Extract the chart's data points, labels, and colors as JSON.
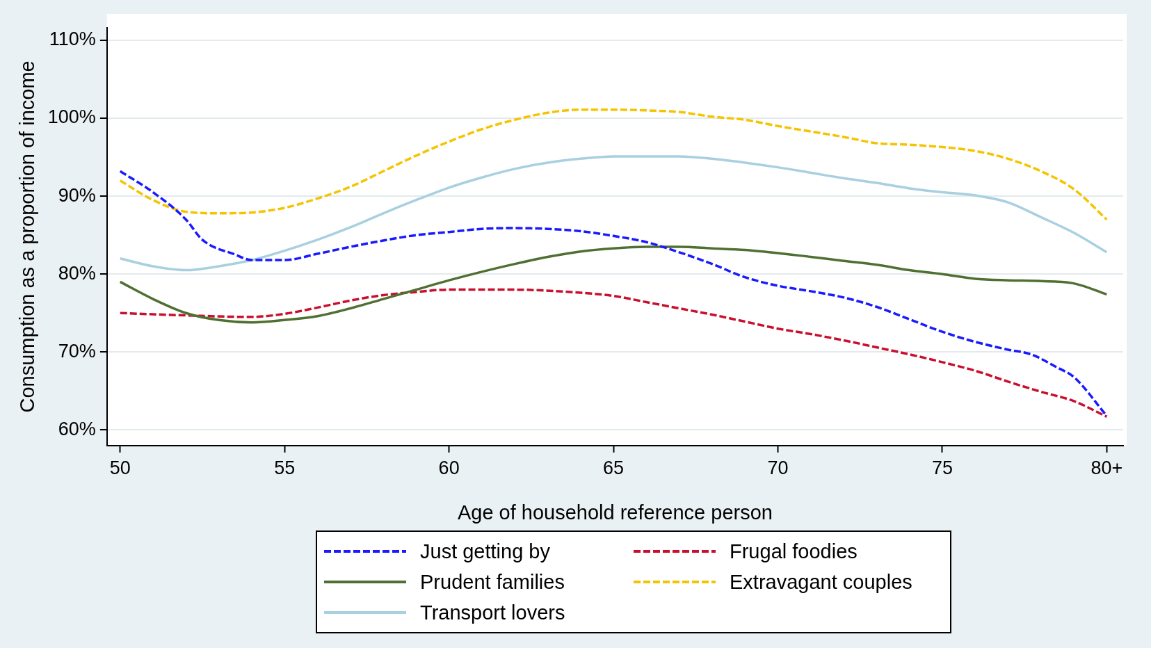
{
  "chart_data": {
    "type": "line",
    "xlabel": "Age of household reference person",
    "ylabel": "Consumption as a proportion of income",
    "xlim": [
      49.6,
      80.5
    ],
    "xticks": [
      50,
      55,
      60,
      65,
      70,
      75,
      {
        "value": 80,
        "label": "80+"
      }
    ],
    "ylim": [
      58,
      111.6
    ],
    "yticks": [
      {
        "value": 60,
        "label": "60%"
      },
      {
        "value": 70,
        "label": "70%"
      },
      {
        "value": 80,
        "label": "80%"
      },
      {
        "value": 90,
        "label": "90%"
      },
      {
        "value": 100,
        "label": "100%"
      },
      {
        "value": 110,
        "label": "110%"
      }
    ],
    "grid": "y",
    "legend": "bottom",
    "marker": "none",
    "series": [
      {
        "name": "Just getting by",
        "color": "#1a1aff",
        "line_style": "dashed",
        "x": [
          50,
          51,
          52,
          52.5,
          53.5,
          54,
          55,
          56,
          57,
          58,
          59,
          60,
          61,
          62,
          63,
          64,
          65,
          66,
          67,
          68,
          69,
          70,
          71,
          72,
          73,
          74,
          75,
          76,
          77,
          77.7,
          78.5,
          79,
          80
        ],
        "values": [
          93.2,
          90.5,
          87,
          84.4,
          82.5,
          81.8,
          81.8,
          82.6,
          83.5,
          84.3,
          85,
          85.4,
          85.8,
          85.9,
          85.8,
          85.5,
          84.9,
          84.1,
          82.8,
          81.3,
          79.6,
          78.5,
          77.8,
          77,
          75.8,
          74.2,
          72.6,
          71.3,
          70.3,
          69.7,
          68,
          66.8,
          61.8
        ]
      },
      {
        "name": "Prudent families",
        "color": "#4f7032",
        "line_style": "solid",
        "x": [
          50,
          51,
          52,
          53,
          54,
          55,
          56,
          57,
          58,
          59,
          60,
          61,
          62,
          63,
          64,
          65,
          66,
          67,
          68,
          69,
          70,
          71,
          72,
          73,
          74,
          75,
          76,
          77,
          78,
          79,
          80
        ],
        "values": [
          79,
          76.8,
          75,
          74.1,
          73.8,
          74.1,
          74.6,
          75.6,
          76.8,
          78,
          79.2,
          80.3,
          81.3,
          82.2,
          82.9,
          83.3,
          83.5,
          83.5,
          83.3,
          83.1,
          82.7,
          82.2,
          81.7,
          81.2,
          80.5,
          80,
          79.4,
          79.2,
          79.1,
          78.8,
          77.4
        ]
      },
      {
        "name": "Transport lovers",
        "color": "#a8d0e0",
        "line_style": "solid",
        "x": [
          50,
          51,
          52,
          53,
          54,
          55,
          56,
          57,
          58,
          59,
          60,
          61,
          62,
          63,
          64,
          65,
          66,
          67,
          68,
          69,
          70,
          71,
          72,
          73,
          74,
          75,
          76,
          77,
          78,
          79,
          80
        ],
        "values": [
          82,
          81,
          80.5,
          81,
          81.8,
          83,
          84.4,
          86,
          87.8,
          89.5,
          91.1,
          92.4,
          93.5,
          94.3,
          94.8,
          95.1,
          95.1,
          95.1,
          94.8,
          94.3,
          93.7,
          93,
          92.3,
          91.7,
          91,
          90.5,
          90.1,
          89.2,
          87.3,
          85.3,
          82.8
        ]
      },
      {
        "name": "Frugal foodies",
        "color": "#c8102e",
        "line_style": "dashed",
        "x": [
          50,
          52,
          54,
          55,
          56,
          57,
          58,
          59,
          60,
          62,
          64,
          65,
          66,
          67,
          68,
          69,
          70,
          71,
          72,
          73,
          74,
          75,
          76,
          77,
          78,
          79,
          80
        ],
        "values": [
          75,
          74.7,
          74.5,
          74.9,
          75.7,
          76.6,
          77.3,
          77.7,
          78,
          78,
          77.6,
          77.2,
          76.4,
          75.6,
          74.8,
          73.9,
          73,
          72.3,
          71.5,
          70.6,
          69.7,
          68.7,
          67.6,
          66.2,
          64.9,
          63.7,
          61.7
        ]
      },
      {
        "name": "Extravagant couples",
        "color": "#f5c400",
        "line_style": "dashed",
        "x": [
          50,
          51,
          52,
          53,
          54,
          55,
          56,
          57,
          58,
          59,
          60,
          61,
          62,
          63,
          64,
          65,
          66,
          67,
          68,
          69,
          70,
          71,
          72,
          73,
          74,
          75,
          76,
          77,
          78,
          79,
          80
        ],
        "values": [
          92,
          89.5,
          88,
          87.8,
          87.9,
          88.5,
          89.7,
          91.2,
          93.2,
          95.2,
          97,
          98.6,
          99.8,
          100.7,
          101.1,
          101.1,
          101,
          100.8,
          100.2,
          99.8,
          99,
          98.3,
          97.6,
          96.8,
          96.6,
          96.3,
          95.8,
          94.8,
          93.2,
          90.9,
          87
        ]
      }
    ]
  }
}
